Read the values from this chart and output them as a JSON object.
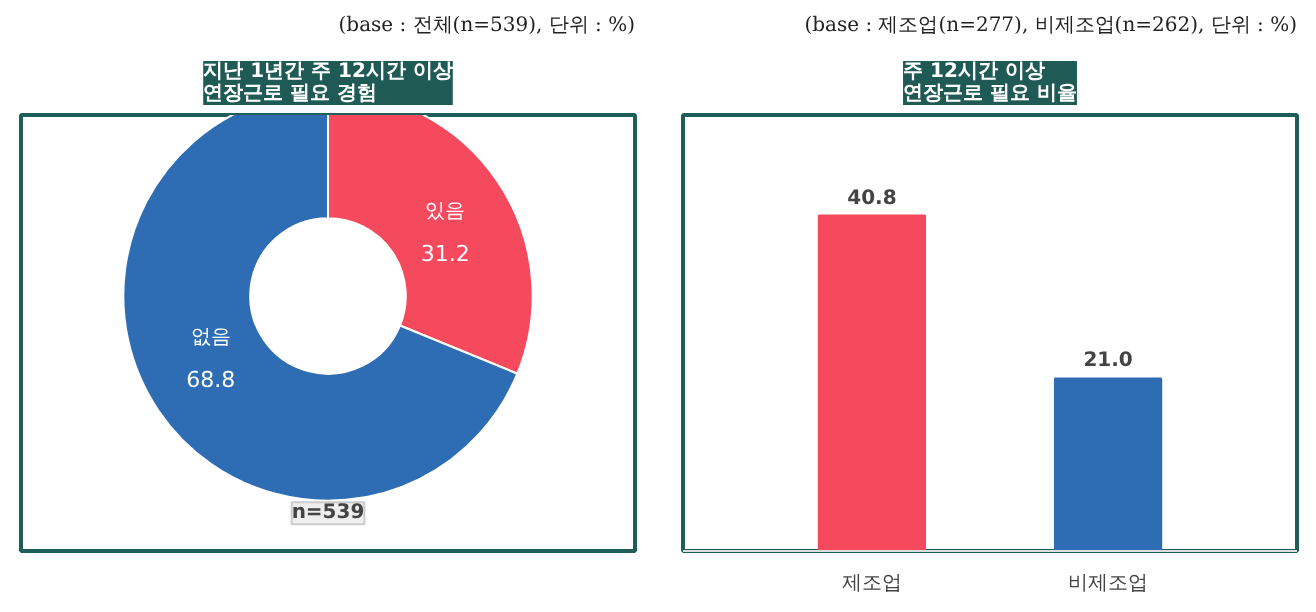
{
  "chart_data": [
    {
      "type": "donut",
      "title": "지난 1년간 주 12시간 이상\n연장근로 필요 경험",
      "subtitle": "(base : 전체(n=539), 단위 : %)",
      "categories": [
        "있음",
        "없음"
      ],
      "values": [
        31.2,
        68.8
      ],
      "colors": [
        "#f5495d",
        "#2e6db4"
      ],
      "data_labels": true,
      "annotations": [
        "n=539"
      ]
    },
    {
      "type": "bar",
      "title": "주 12시간 이상\n연장근로 필요 비율",
      "subtitle": "(base : 제조업(n=277), 비제조업(n=262), 단위 : %)",
      "categories": [
        "제조업",
        "비제조업"
      ],
      "values": [
        40.8,
        21.0
      ],
      "value_labels": [
        "40.8",
        "21.0"
      ],
      "colors": [
        "#f5495d",
        "#2e6db4"
      ]
    }
  ]
}
